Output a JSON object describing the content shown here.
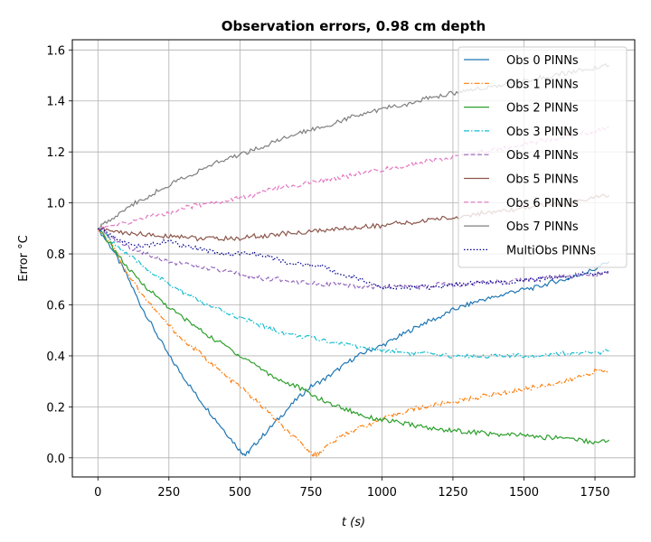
{
  "chart_data": {
    "type": "line",
    "title": "Observation errors, 0.98 cm depth",
    "xlabel": "t (s)",
    "ylabel": "Error °C",
    "xlim": [
      -90,
      1890
    ],
    "ylim": [
      -0.075,
      1.64
    ],
    "xticks": [
      0,
      250,
      500,
      750,
      1000,
      1250,
      1500,
      1750
    ],
    "yticks": [
      0.0,
      0.2,
      0.4,
      0.6,
      0.8,
      1.0,
      1.2,
      1.4,
      1.6
    ],
    "xtick_labels": [
      "0",
      "250",
      "500",
      "750",
      "1000",
      "1250",
      "1500",
      "1750"
    ],
    "ytick_labels": [
      "0.0",
      "0.2",
      "0.4",
      "0.6",
      "0.8",
      "1.0",
      "1.2",
      "1.4",
      "1.6"
    ],
    "grid": true,
    "legend_position": "top-right",
    "series": [
      {
        "name": "Obs 0 PINNs",
        "color": "#1f77b4",
        "dash": "solid",
        "x": [
          0,
          50,
          100,
          150,
          200,
          250,
          300,
          350,
          400,
          450,
          500,
          520,
          550,
          600,
          650,
          700,
          750,
          800,
          850,
          900,
          950,
          1000,
          1050,
          1100,
          1150,
          1200,
          1250,
          1300,
          1350,
          1400,
          1450,
          1500,
          1550,
          1600,
          1650,
          1700,
          1750,
          1800
        ],
        "y": [
          0.9,
          0.82,
          0.72,
          0.6,
          0.5,
          0.4,
          0.32,
          0.24,
          0.17,
          0.1,
          0.03,
          0.01,
          0.05,
          0.11,
          0.17,
          0.23,
          0.28,
          0.31,
          0.35,
          0.39,
          0.42,
          0.44,
          0.47,
          0.5,
          0.53,
          0.55,
          0.58,
          0.6,
          0.62,
          0.63,
          0.65,
          0.66,
          0.67,
          0.69,
          0.7,
          0.72,
          0.74,
          0.77
        ]
      },
      {
        "name": "Obs 1 PINNs",
        "color": "#ff7f0e",
        "dash": "dashdot",
        "x": [
          0,
          50,
          100,
          150,
          200,
          250,
          300,
          350,
          400,
          450,
          500,
          550,
          600,
          650,
          700,
          750,
          770,
          800,
          850,
          900,
          950,
          1000,
          1050,
          1100,
          1150,
          1200,
          1250,
          1300,
          1350,
          1400,
          1450,
          1500,
          1550,
          1600,
          1650,
          1700,
          1750,
          1800
        ],
        "y": [
          0.9,
          0.84,
          0.73,
          0.65,
          0.58,
          0.52,
          0.46,
          0.42,
          0.37,
          0.32,
          0.28,
          0.23,
          0.18,
          0.12,
          0.07,
          0.02,
          0.01,
          0.04,
          0.08,
          0.11,
          0.13,
          0.15,
          0.17,
          0.19,
          0.2,
          0.21,
          0.22,
          0.23,
          0.24,
          0.25,
          0.26,
          0.27,
          0.28,
          0.29,
          0.3,
          0.32,
          0.34,
          0.34
        ]
      },
      {
        "name": "Obs 2 PINNs",
        "color": "#2ca02c",
        "dash": "solid",
        "x": [
          0,
          50,
          100,
          150,
          200,
          250,
          300,
          350,
          400,
          450,
          500,
          550,
          600,
          650,
          700,
          750,
          800,
          850,
          900,
          950,
          1000,
          1050,
          1100,
          1150,
          1200,
          1250,
          1300,
          1350,
          1400,
          1450,
          1500,
          1550,
          1600,
          1650,
          1700,
          1750,
          1800
        ],
        "y": [
          0.9,
          0.83,
          0.75,
          0.69,
          0.64,
          0.59,
          0.55,
          0.51,
          0.47,
          0.44,
          0.4,
          0.37,
          0.33,
          0.3,
          0.28,
          0.25,
          0.22,
          0.2,
          0.18,
          0.16,
          0.15,
          0.14,
          0.13,
          0.12,
          0.11,
          0.11,
          0.1,
          0.1,
          0.09,
          0.09,
          0.09,
          0.08,
          0.08,
          0.08,
          0.07,
          0.06,
          0.07
        ]
      },
      {
        "name": "Obs 3 PINNs",
        "color": "#17becf",
        "dash": "dashdot",
        "x": [
          0,
          50,
          100,
          150,
          200,
          250,
          300,
          350,
          400,
          450,
          500,
          550,
          600,
          650,
          700,
          750,
          800,
          850,
          900,
          950,
          1000,
          1050,
          1100,
          1150,
          1200,
          1250,
          1300,
          1350,
          1400,
          1450,
          1500,
          1550,
          1600,
          1650,
          1700,
          1750,
          1800
        ],
        "y": [
          0.9,
          0.85,
          0.8,
          0.76,
          0.72,
          0.68,
          0.65,
          0.62,
          0.59,
          0.57,
          0.55,
          0.53,
          0.51,
          0.49,
          0.48,
          0.47,
          0.46,
          0.45,
          0.44,
          0.43,
          0.42,
          0.42,
          0.41,
          0.41,
          0.4,
          0.4,
          0.4,
          0.4,
          0.4,
          0.4,
          0.4,
          0.4,
          0.41,
          0.41,
          0.41,
          0.41,
          0.42
        ]
      },
      {
        "name": "Obs 4 PINNs",
        "color": "#9467bd",
        "dash": "dashed",
        "x": [
          0,
          50,
          100,
          150,
          200,
          250,
          300,
          350,
          400,
          450,
          500,
          550,
          600,
          650,
          700,
          750,
          800,
          850,
          900,
          950,
          1000,
          1050,
          1100,
          1150,
          1200,
          1250,
          1300,
          1350,
          1400,
          1450,
          1500,
          1550,
          1600,
          1650,
          1700,
          1750,
          1800
        ],
        "y": [
          0.9,
          0.86,
          0.83,
          0.81,
          0.79,
          0.77,
          0.76,
          0.75,
          0.74,
          0.73,
          0.72,
          0.71,
          0.7,
          0.7,
          0.69,
          0.69,
          0.68,
          0.68,
          0.67,
          0.67,
          0.67,
          0.67,
          0.67,
          0.67,
          0.68,
          0.68,
          0.68,
          0.69,
          0.69,
          0.69,
          0.7,
          0.7,
          0.71,
          0.71,
          0.72,
          0.72,
          0.73
        ]
      },
      {
        "name": "Obs 5 PINNs",
        "color": "#8c564b",
        "dash": "solid",
        "x": [
          0,
          50,
          100,
          150,
          200,
          250,
          300,
          350,
          400,
          450,
          500,
          550,
          600,
          650,
          700,
          750,
          800,
          850,
          900,
          950,
          1000,
          1050,
          1100,
          1150,
          1200,
          1250,
          1300,
          1350,
          1400,
          1450,
          1500,
          1550,
          1600,
          1650,
          1700,
          1750,
          1800
        ],
        "y": [
          0.9,
          0.89,
          0.88,
          0.88,
          0.87,
          0.87,
          0.87,
          0.86,
          0.86,
          0.86,
          0.86,
          0.87,
          0.87,
          0.88,
          0.88,
          0.89,
          0.89,
          0.9,
          0.9,
          0.91,
          0.91,
          0.92,
          0.92,
          0.93,
          0.94,
          0.94,
          0.95,
          0.96,
          0.96,
          0.97,
          0.98,
          0.99,
          0.99,
          1.0,
          1.01,
          1.02,
          1.03
        ]
      },
      {
        "name": "Obs 6 PINNs",
        "color": "#e377c2",
        "dash": "dashed",
        "x": [
          0,
          50,
          100,
          150,
          200,
          250,
          300,
          350,
          400,
          450,
          500,
          550,
          600,
          650,
          700,
          750,
          800,
          850,
          900,
          950,
          1000,
          1050,
          1100,
          1150,
          1200,
          1250,
          1300,
          1350,
          1400,
          1450,
          1500,
          1550,
          1600,
          1650,
          1700,
          1750,
          1800
        ],
        "y": [
          0.9,
          0.91,
          0.92,
          0.94,
          0.95,
          0.96,
          0.98,
          0.99,
          1.0,
          1.01,
          1.02,
          1.03,
          1.05,
          1.06,
          1.07,
          1.08,
          1.09,
          1.1,
          1.11,
          1.12,
          1.13,
          1.14,
          1.15,
          1.16,
          1.17,
          1.18,
          1.19,
          1.2,
          1.21,
          1.22,
          1.23,
          1.24,
          1.25,
          1.26,
          1.27,
          1.28,
          1.3
        ]
      },
      {
        "name": "Obs 7 PINNs",
        "color": "#7f7f7f",
        "dash": "solid",
        "x": [
          0,
          50,
          100,
          150,
          200,
          250,
          300,
          350,
          400,
          450,
          500,
          550,
          600,
          650,
          700,
          750,
          800,
          850,
          900,
          950,
          1000,
          1050,
          1100,
          1150,
          1200,
          1250,
          1300,
          1350,
          1400,
          1450,
          1500,
          1550,
          1600,
          1650,
          1700,
          1750,
          1800
        ],
        "y": [
          0.9,
          0.94,
          0.98,
          1.01,
          1.04,
          1.07,
          1.1,
          1.12,
          1.15,
          1.17,
          1.19,
          1.21,
          1.23,
          1.25,
          1.27,
          1.29,
          1.3,
          1.32,
          1.34,
          1.35,
          1.37,
          1.38,
          1.39,
          1.41,
          1.42,
          1.43,
          1.44,
          1.45,
          1.46,
          1.47,
          1.48,
          1.49,
          1.5,
          1.51,
          1.52,
          1.53,
          1.54
        ]
      },
      {
        "name": "MultiObs PINNs",
        "color": "#00008b",
        "dash": "dotted",
        "x": [
          0,
          50,
          100,
          150,
          200,
          250,
          300,
          350,
          400,
          450,
          500,
          550,
          600,
          650,
          700,
          750,
          800,
          850,
          900,
          950,
          1000,
          1050,
          1100,
          1150,
          1200,
          1250,
          1300,
          1350,
          1400,
          1450,
          1500,
          1550,
          1600,
          1650,
          1700,
          1750,
          1800
        ],
        "y": [
          0.9,
          0.87,
          0.84,
          0.83,
          0.84,
          0.85,
          0.83,
          0.82,
          0.81,
          0.8,
          0.8,
          0.8,
          0.79,
          0.77,
          0.76,
          0.76,
          0.75,
          0.72,
          0.71,
          0.69,
          0.67,
          0.67,
          0.67,
          0.67,
          0.67,
          0.68,
          0.68,
          0.69,
          0.69,
          0.69,
          0.7,
          0.7,
          0.71,
          0.71,
          0.72,
          0.72,
          0.73
        ]
      }
    ]
  }
}
